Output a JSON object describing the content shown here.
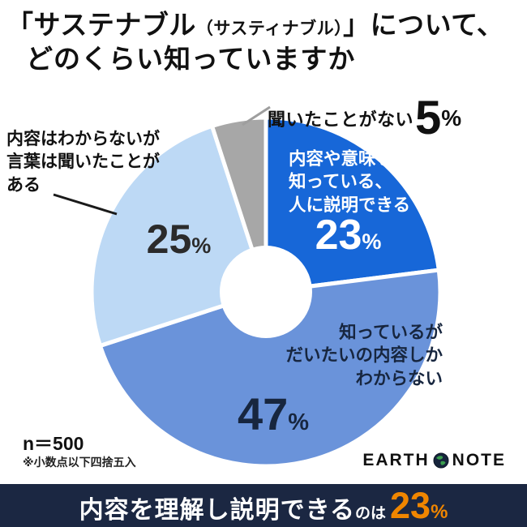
{
  "title": {
    "line1_open": "「サステナブル",
    "line1_paren": "（サスティナブル）",
    "line1_close": "」について、",
    "line2": "どのくらい知っていますか"
  },
  "chart_data": {
    "type": "pie",
    "donut": true,
    "order": "clockwise-from-top",
    "title": "「サステナブル（サスティナブル）」について、どのくらい知っていますか",
    "segments": [
      {
        "label": "内容や意味を知っている、人に説明できる",
        "value": 23,
        "color": "#1767d8"
      },
      {
        "label": "知っているがだいたいの内容しかわからない",
        "value": 47,
        "color": "#6a93da"
      },
      {
        "label": "内容はわからないが言葉は聞いたことがある",
        "value": 25,
        "color": "#bdd9f5"
      },
      {
        "label": "聞いたことがない",
        "value": 5,
        "color": "#a7a7a7"
      }
    ],
    "n_note": "n＝500",
    "footnote": "※小数点以下四捨五入"
  },
  "callouts": {
    "know_label": "内容や意味を\n知っている、\n人に説明できる",
    "know_value": "23",
    "know_unit": "%",
    "vague_label": "知っているが\nだいたいの内容しか\nわからない",
    "vague_value": "47",
    "vague_unit": "%",
    "heard_label": "内容はわからないが\n言葉は聞いたことが\nある",
    "heard_value": "25",
    "heard_unit": "%",
    "none_label": "聞いたことがない",
    "none_value": "5",
    "none_unit": "%"
  },
  "logo": {
    "left": "EARTH",
    "right": "NOTE"
  },
  "banner": {
    "main": "内容を理解し説明できる",
    "sub": "のは",
    "value": "23",
    "unit": "%"
  },
  "colors": {
    "banner_bg": "#1b2742",
    "accent_orange": "#f08600",
    "dark_navy_text": "#17263f",
    "callout_line_black": "#1a1a1a",
    "callout_line_gray": "#9e9e9e"
  }
}
